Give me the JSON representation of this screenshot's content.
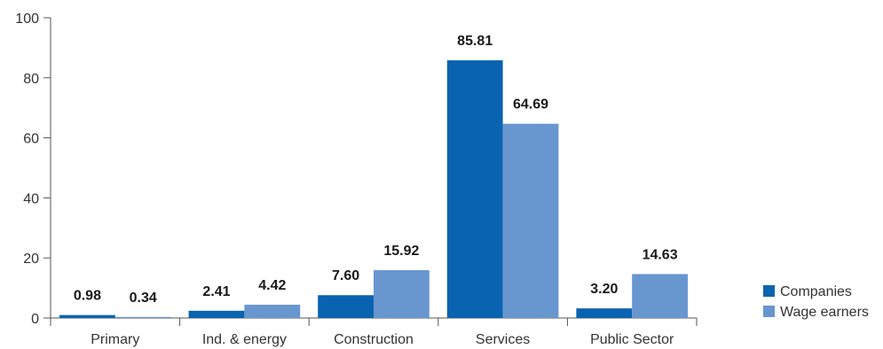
{
  "chart_data": {
    "type": "bar",
    "categories": [
      "Primary",
      "Ind. & energy",
      "Construction",
      "Services",
      "Public Sector"
    ],
    "series": [
      {
        "name": "Companies",
        "values": [
          0.98,
          2.41,
          7.6,
          85.81,
          3.2
        ],
        "labels": [
          "0.98",
          "2.41",
          "7.60",
          "85.81",
          "3.20"
        ],
        "color": "#0a63b0"
      },
      {
        "name": "Wage earners",
        "values": [
          0.34,
          4.42,
          15.92,
          64.69,
          14.63
        ],
        "labels": [
          "0.34",
          "4.42",
          "15.92",
          "64.69",
          "14.63"
        ],
        "color": "#6896cf"
      }
    ],
    "yticks": [
      "0",
      "20",
      "40",
      "60",
      "80",
      "100"
    ],
    "ylim": [
      0,
      100
    ],
    "grid": false,
    "legend_position": "bottom-right"
  }
}
